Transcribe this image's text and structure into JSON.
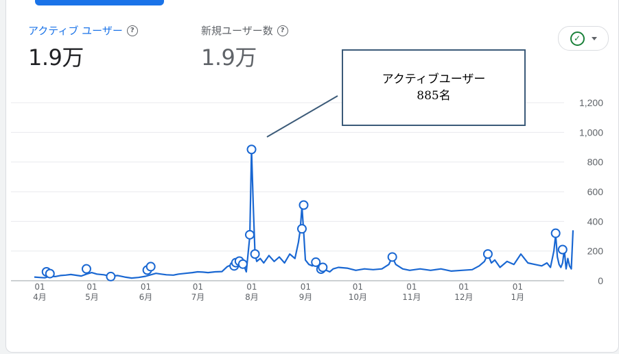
{
  "metrics": {
    "active": {
      "label": "アクティブ ユーザー",
      "value": "1.9万",
      "color": "#1a73e8"
    },
    "new": {
      "label": "新規ユーザー数",
      "value": "1.9万",
      "color": "#5f6368"
    }
  },
  "help_glyph": "?",
  "compare": {
    "check_glyph": "✓"
  },
  "callout": {
    "line1": "アクティブユーザー",
    "line2": "885名"
  },
  "chart_data": {
    "type": "line",
    "title": "",
    "xlabel": "",
    "ylabel": "",
    "ylim": [
      0,
      1200
    ],
    "yticks": [
      "1,200",
      "1,000",
      "800",
      "600",
      "400",
      "200",
      "0"
    ],
    "grid": true,
    "series_color": "#1967d2",
    "xticks": [
      {
        "day": "01",
        "month": "4月"
      },
      {
        "day": "01",
        "month": "5月"
      },
      {
        "day": "01",
        "month": "6月"
      },
      {
        "day": "01",
        "month": "7月"
      },
      {
        "day": "01",
        "month": "8月"
      },
      {
        "day": "01",
        "month": "9月"
      },
      {
        "day": "01",
        "month": "10月"
      },
      {
        "day": "01",
        "month": "11月"
      },
      {
        "day": "01",
        "month": "12月"
      },
      {
        "day": "01",
        "month": "1月"
      }
    ],
    "series": [
      {
        "values": [
          [
            0,
            25
          ],
          [
            3,
            22
          ],
          [
            6,
            20
          ],
          [
            9,
            30
          ],
          [
            12,
            28
          ],
          [
            15,
            35
          ],
          [
            18,
            38
          ],
          [
            21,
            42
          ],
          [
            24,
            37
          ],
          [
            27,
            32
          ],
          [
            30,
            45
          ],
          [
            33,
            55
          ],
          [
            36,
            45
          ],
          [
            40,
            40
          ],
          [
            44,
            30
          ],
          [
            48,
            35
          ],
          [
            52,
            25
          ],
          [
            56,
            18
          ],
          [
            60,
            22
          ],
          [
            64,
            30
          ],
          [
            67,
            40
          ],
          [
            70,
            50
          ],
          [
            73,
            45
          ],
          [
            76,
            40
          ],
          [
            80,
            38
          ],
          [
            83,
            45
          ],
          [
            87,
            50
          ],
          [
            91,
            55
          ],
          [
            94,
            60
          ],
          [
            97,
            58
          ],
          [
            100,
            55
          ],
          [
            104,
            60
          ],
          [
            108,
            62
          ],
          [
            111,
            95
          ],
          [
            114,
            110
          ],
          [
            116,
            130
          ],
          [
            118,
            140
          ],
          [
            120,
            120
          ],
          [
            122,
            60
          ],
          [
            124,
            300
          ],
          [
            125,
            885
          ],
          [
            126,
            500
          ],
          [
            127,
            180
          ],
          [
            128,
            130
          ],
          [
            130,
            150
          ],
          [
            132,
            120
          ],
          [
            135,
            170
          ],
          [
            138,
            130
          ],
          [
            141,
            160
          ],
          [
            144,
            120
          ],
          [
            147,
            180
          ],
          [
            150,
            150
          ],
          [
            152,
            260
          ],
          [
            153,
            340
          ],
          [
            154,
            500
          ],
          [
            155,
            330
          ],
          [
            156,
            140
          ],
          [
            158,
            110
          ],
          [
            160,
            100
          ],
          [
            162,
            120
          ],
          [
            165,
            90
          ],
          [
            168,
            70
          ],
          [
            170,
            60
          ],
          [
            172,
            80
          ],
          [
            175,
            90
          ],
          [
            180,
            85
          ],
          [
            185,
            70
          ],
          [
            190,
            80
          ],
          [
            195,
            75
          ],
          [
            200,
            80
          ],
          [
            204,
            110
          ],
          [
            206,
            160
          ],
          [
            208,
            110
          ],
          [
            212,
            80
          ],
          [
            216,
            70
          ],
          [
            222,
            80
          ],
          [
            228,
            70
          ],
          [
            234,
            80
          ],
          [
            240,
            65
          ],
          [
            246,
            70
          ],
          [
            252,
            75
          ],
          [
            256,
            100
          ],
          [
            259,
            130
          ],
          [
            261,
            180
          ],
          [
            263,
            120
          ],
          [
            265,
            140
          ],
          [
            268,
            90
          ],
          [
            272,
            130
          ],
          [
            276,
            110
          ],
          [
            280,
            180
          ],
          [
            284,
            120
          ],
          [
            288,
            110
          ],
          [
            292,
            100
          ],
          [
            295,
            120
          ],
          [
            297,
            90
          ],
          [
            299,
            200
          ],
          [
            300,
            310
          ],
          [
            301,
            160
          ],
          [
            302,
            110
          ],
          [
            303,
            90
          ],
          [
            304,
            120
          ],
          [
            305,
            210
          ],
          [
            306,
            80
          ],
          [
            307,
            150
          ],
          [
            308,
            100
          ],
          [
            309,
            80
          ],
          [
            310,
            340
          ]
        ]
      }
    ],
    "markers": [
      [
        7,
        60
      ],
      [
        9,
        48
      ],
      [
        30,
        80
      ],
      [
        44,
        28
      ],
      [
        65,
        72
      ],
      [
        67,
        95
      ],
      [
        115,
        100
      ],
      [
        116,
        122
      ],
      [
        118,
        132
      ],
      [
        120,
        112
      ],
      [
        124,
        310
      ],
      [
        125,
        885
      ],
      [
        127,
        180
      ],
      [
        154,
        350
      ],
      [
        155,
        510
      ],
      [
        162,
        125
      ],
      [
        165,
        78
      ],
      [
        166,
        90
      ],
      [
        206,
        160
      ],
      [
        261,
        180
      ],
      [
        300,
        320
      ],
      [
        304,
        210
      ]
    ]
  }
}
